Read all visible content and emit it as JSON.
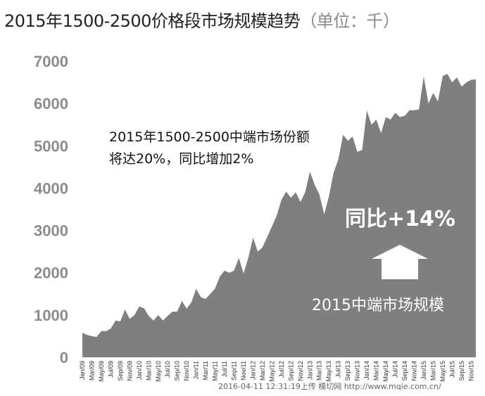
{
  "chart_data": {
    "type": "area",
    "title": "2015年1500-2500价格段市场规模趋势",
    "title_unit": "（单位：千）",
    "xlabel": "",
    "ylabel": "",
    "ylim": [
      0,
      7000
    ],
    "yticks": [
      "7000",
      "6000",
      "5000",
      "4000",
      "3000",
      "2000",
      "1000",
      "0"
    ],
    "ytick_values": [
      7000,
      6000,
      5000,
      4000,
      3000,
      2000,
      1000,
      0
    ],
    "grid": false,
    "color": "#7f7f7f",
    "x_tick_labels": [
      "Jan/09",
      "Mar/09",
      "May/09",
      "Jul/09",
      "Sep/09",
      "Nov/09",
      "Jan/10",
      "Mar/10",
      "May/10",
      "Jul/10",
      "Sep/10",
      "Nov/10",
      "Jan/11",
      "Mar/11",
      "May/11",
      "Jul/11",
      "Sep/11",
      "Nov/11",
      "Jan/12",
      "Mar/12",
      "May/12",
      "Jul/12",
      "Sep/12",
      "Nov/12",
      "Jan/13",
      "Mar/13",
      "May/13",
      "Jul/13",
      "Sep/13",
      "Nov/13",
      "Jan/14",
      "Mar/14",
      "May/14",
      "Jul/14",
      "Sep/14",
      "Nov/14",
      "Jan/15",
      "Mar/15",
      "May/15",
      "Jul/15",
      "Sep/15",
      "Nov/15"
    ],
    "x": [
      "Jan/09",
      "Feb/09",
      "Mar/09",
      "Apr/09",
      "May/09",
      "Jun/09",
      "Jul/09",
      "Aug/09",
      "Sep/09",
      "Oct/09",
      "Nov/09",
      "Dec/09",
      "Jan/10",
      "Feb/10",
      "Mar/10",
      "Apr/10",
      "May/10",
      "Jun/10",
      "Jul/10",
      "Aug/10",
      "Sep/10",
      "Oct/10",
      "Nov/10",
      "Dec/10",
      "Jan/11",
      "Feb/11",
      "Mar/11",
      "Apr/11",
      "May/11",
      "Jun/11",
      "Jul/11",
      "Aug/11",
      "Sep/11",
      "Oct/11",
      "Nov/11",
      "Dec/11",
      "Jan/12",
      "Feb/12",
      "Mar/12",
      "Apr/12",
      "May/12",
      "Jun/12",
      "Jul/12",
      "Aug/12",
      "Sep/12",
      "Oct/12",
      "Nov/12",
      "Dec/12",
      "Jan/13",
      "Feb/13",
      "Mar/13",
      "Apr/13",
      "May/13",
      "Jun/13",
      "Jul/13",
      "Aug/13",
      "Sep/13",
      "Oct/13",
      "Nov/13",
      "Dec/13",
      "Jan/14",
      "Feb/14",
      "Mar/14",
      "Apr/14",
      "May/14",
      "Jun/14",
      "Jul/14",
      "Aug/14",
      "Sep/14",
      "Oct/14",
      "Nov/14",
      "Dec/14",
      "Jan/15",
      "Feb/15",
      "Mar/15",
      "Apr/15",
      "May/15",
      "Jun/15",
      "Jul/15",
      "Aug/15",
      "Sep/15",
      "Oct/15",
      "Nov/15",
      "Dec/15"
    ],
    "values": [
      580,
      530,
      500,
      480,
      620,
      620,
      680,
      870,
      850,
      1130,
      910,
      1000,
      1200,
      1160,
      980,
      870,
      1000,
      870,
      980,
      1080,
      1080,
      1330,
      1150,
      1300,
      1620,
      1420,
      1380,
      1500,
      1630,
      1910,
      2050,
      2000,
      2050,
      2350,
      1980,
      2350,
      2830,
      2500,
      2600,
      2850,
      3100,
      3350,
      3730,
      3920,
      3770,
      3900,
      3670,
      3900,
      4390,
      4080,
      3850,
      3380,
      3800,
      4370,
      4680,
      5260,
      5120,
      5220,
      4860,
      4900,
      5830,
      5500,
      5620,
      5300,
      5680,
      5620,
      5780,
      5680,
      5710,
      5840,
      5840,
      5860,
      6640,
      6000,
      6250,
      6050,
      6650,
      6700,
      6500,
      6620,
      6400,
      6500,
      6560,
      6570
    ]
  },
  "annotations": {
    "note1_line1": "2015年1500-2500中端市场份额",
    "note1_line2": "将达20%，同比增加2%",
    "yoy": "同比+14%",
    "scale_label": "2015中端市场规模"
  },
  "watermark": "2016-04-11 12:31:19上传 模切网 http://www.mqie.com.cn/"
}
